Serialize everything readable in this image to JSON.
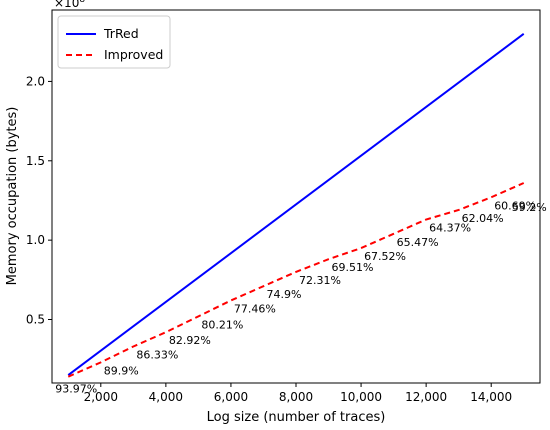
{
  "chart_data": {
    "type": "line",
    "xlabel": "Log size (number of traces)",
    "ylabel": "Memory occupation (bytes)",
    "y_multiplier_label": "×10^8",
    "xlim": [
      500,
      15500
    ],
    "ylim": [
      0.1,
      2.45
    ],
    "y_scale": 100000000,
    "x_ticks": [
      2000,
      4000,
      6000,
      8000,
      10000,
      12000,
      14000
    ],
    "x_tick_labels": [
      "2,000",
      "4,000",
      "6,000",
      "8,000",
      "10,000",
      "12,000",
      "14,000"
    ],
    "y_ticks": [
      0.5,
      1.0,
      1.5,
      2.0
    ],
    "y_tick_labels": [
      "0.5",
      "1.0",
      "1.5",
      "2.0"
    ],
    "legend_position": "top-left",
    "grid": false,
    "series": [
      {
        "name": "TrRed",
        "color": "#0000ff",
        "style": "solid",
        "x": [
          1000,
          15000
        ],
        "y": [
          0.15,
          2.3
        ]
      },
      {
        "name": "Improved",
        "color": "#ff0000",
        "style": "dashed",
        "x": [
          1000,
          2000,
          3000,
          4000,
          5000,
          6000,
          7000,
          8000,
          9000,
          10000,
          11000,
          12000,
          13000,
          14000,
          15000
        ],
        "y": [
          0.14,
          0.23,
          0.33,
          0.42,
          0.52,
          0.62,
          0.71,
          0.8,
          0.88,
          0.95,
          1.04,
          1.13,
          1.19,
          1.27,
          1.36
        ]
      }
    ],
    "annotations": {
      "x": [
        1000,
        2000,
        3000,
        4000,
        5000,
        6000,
        7000,
        8000,
        9000,
        10000,
        11000,
        12000,
        13000,
        14000,
        15000
      ],
      "y": [
        0.14,
        0.23,
        0.33,
        0.42,
        0.52,
        0.62,
        0.71,
        0.8,
        0.88,
        0.95,
        1.04,
        1.13,
        1.19,
        1.27,
        1.36
      ],
      "labels": [
        "93.97%",
        "89.9%",
        "86.33%",
        "82.92%",
        "80.21%",
        "77.46%",
        "74.9%",
        "72.31%",
        "69.51%",
        "67.52%",
        "65.47%",
        "64.37%",
        "62.04%",
        "60.69%",
        "59.2%"
      ]
    }
  }
}
